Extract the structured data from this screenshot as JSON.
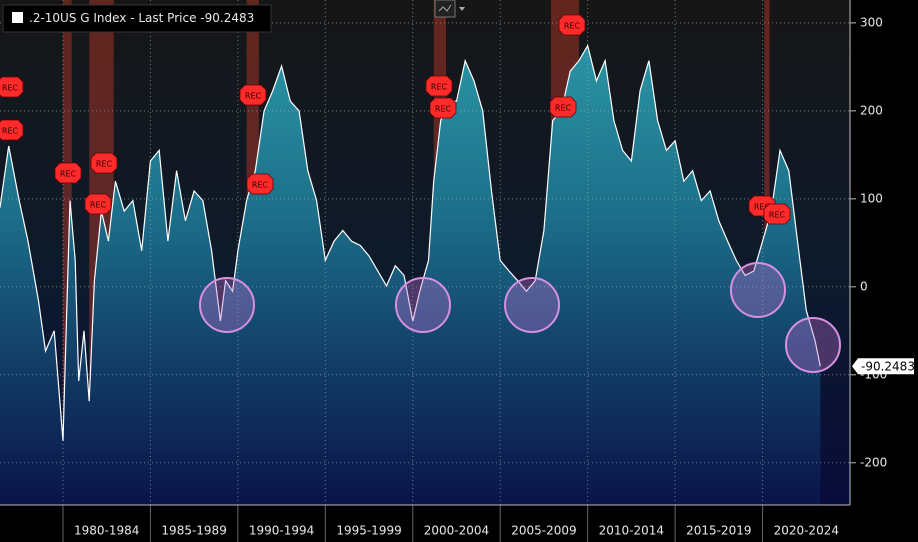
{
  "chart_data": {
    "type": "area",
    "rec_label": "REC",
    "series": [
      {
        "name": ".2-10US G Index - Last Price",
        "color": "#ffffff",
        "x": [
          1976.4,
          1976.9,
          1977.5,
          1978.0,
          1978.6,
          1979.0,
          1979.5,
          1980.0,
          1980.1,
          1980.4,
          1980.7,
          1980.9,
          1981.2,
          1981.5,
          1981.8,
          1982.2,
          1982.6,
          1983.0,
          1983.5,
          1984.0,
          1984.5,
          1985.0,
          1985.5,
          1986.0,
          1986.5,
          1987.0,
          1987.5,
          1988.0,
          1988.5,
          1989.0,
          1989.3,
          1989.7,
          1990.0,
          1990.5,
          1991.0,
          1991.5,
          1992.0,
          1992.5,
          1993.0,
          1993.5,
          1994.0,
          1994.5,
          1995.0,
          1995.5,
          1996.0,
          1996.5,
          1997.0,
          1997.5,
          1998.0,
          1998.5,
          1999.0,
          1999.5,
          2000.0,
          2000.4,
          2000.9,
          2001.2,
          2001.6,
          2002.0,
          2002.5,
          2003.0,
          2003.5,
          2004.0,
          2004.5,
          2005.0,
          2005.5,
          2006.0,
          2006.5,
          2007.0,
          2007.5,
          2008.0,
          2008.5,
          2009.0,
          2009.5,
          2010.0,
          2010.5,
          2011.0,
          2011.5,
          2012.0,
          2012.5,
          2013.0,
          2013.5,
          2014.0,
          2014.5,
          2015.0,
          2015.5,
          2016.0,
          2016.5,
          2017.0,
          2017.5,
          2018.0,
          2018.5,
          2019.0,
          2019.5,
          2020.0,
          2020.5,
          2021.0,
          2021.5,
          2022.0,
          2022.5,
          2023.0,
          2023.3
        ],
        "values": [
          90,
          160,
          98,
          52,
          -16,
          -73,
          -50,
          -175,
          -107,
          98,
          30,
          -107,
          -50,
          -130,
          7,
          86,
          52,
          120,
          86,
          98,
          41,
          143,
          155,
          52,
          132,
          75,
          109,
          98,
          41,
          -39,
          7,
          -5,
          41,
          98,
          132,
          200,
          223,
          251,
          211,
          200,
          132,
          98,
          30,
          52,
          64,
          52,
          47,
          35,
          18,
          1,
          24,
          13,
          -39,
          -5,
          30,
          120,
          189,
          211,
          211,
          257,
          234,
          200,
          109,
          30,
          18,
          7,
          -5,
          7,
          64,
          189,
          200,
          245,
          257,
          274,
          234,
          257,
          189,
          155,
          143,
          223,
          257,
          189,
          155,
          166,
          120,
          132,
          98,
          109,
          75,
          52,
          30,
          13,
          18,
          52,
          86,
          155,
          132,
          52,
          -27,
          -61,
          -90.2483
        ]
      }
    ],
    "recessions": [
      [
        1980.0,
        1980.5
      ],
      [
        1981.5,
        1982.9
      ],
      [
        1990.5,
        1991.2
      ],
      [
        2001.2,
        2001.9
      ],
      [
        2007.9,
        2009.5
      ],
      [
        2020.1,
        2020.4
      ]
    ],
    "recession_color": "#c0392b",
    "xlim": [
      1976.4,
      2025
    ],
    "ylim": [
      -248,
      326
    ],
    "xticks": [
      {
        "value": 1980,
        "label": "1980-1984"
      },
      {
        "value": 1985,
        "label": "1985-1989"
      },
      {
        "value": 1990,
        "label": "1990-1994"
      },
      {
        "value": 1995,
        "label": "1995-1999"
      },
      {
        "value": 2000,
        "label": "2000-2004"
      },
      {
        "value": 2005,
        "label": "2005-2009"
      },
      {
        "value": 2010,
        "label": "2010-2014"
      },
      {
        "value": 2015,
        "label": "2015-2019"
      },
      {
        "value": 2020,
        "label": "2020-2024"
      }
    ],
    "yticks": [
      300,
      200,
      100,
      0,
      -100,
      -200
    ],
    "grid": true
  }
}
